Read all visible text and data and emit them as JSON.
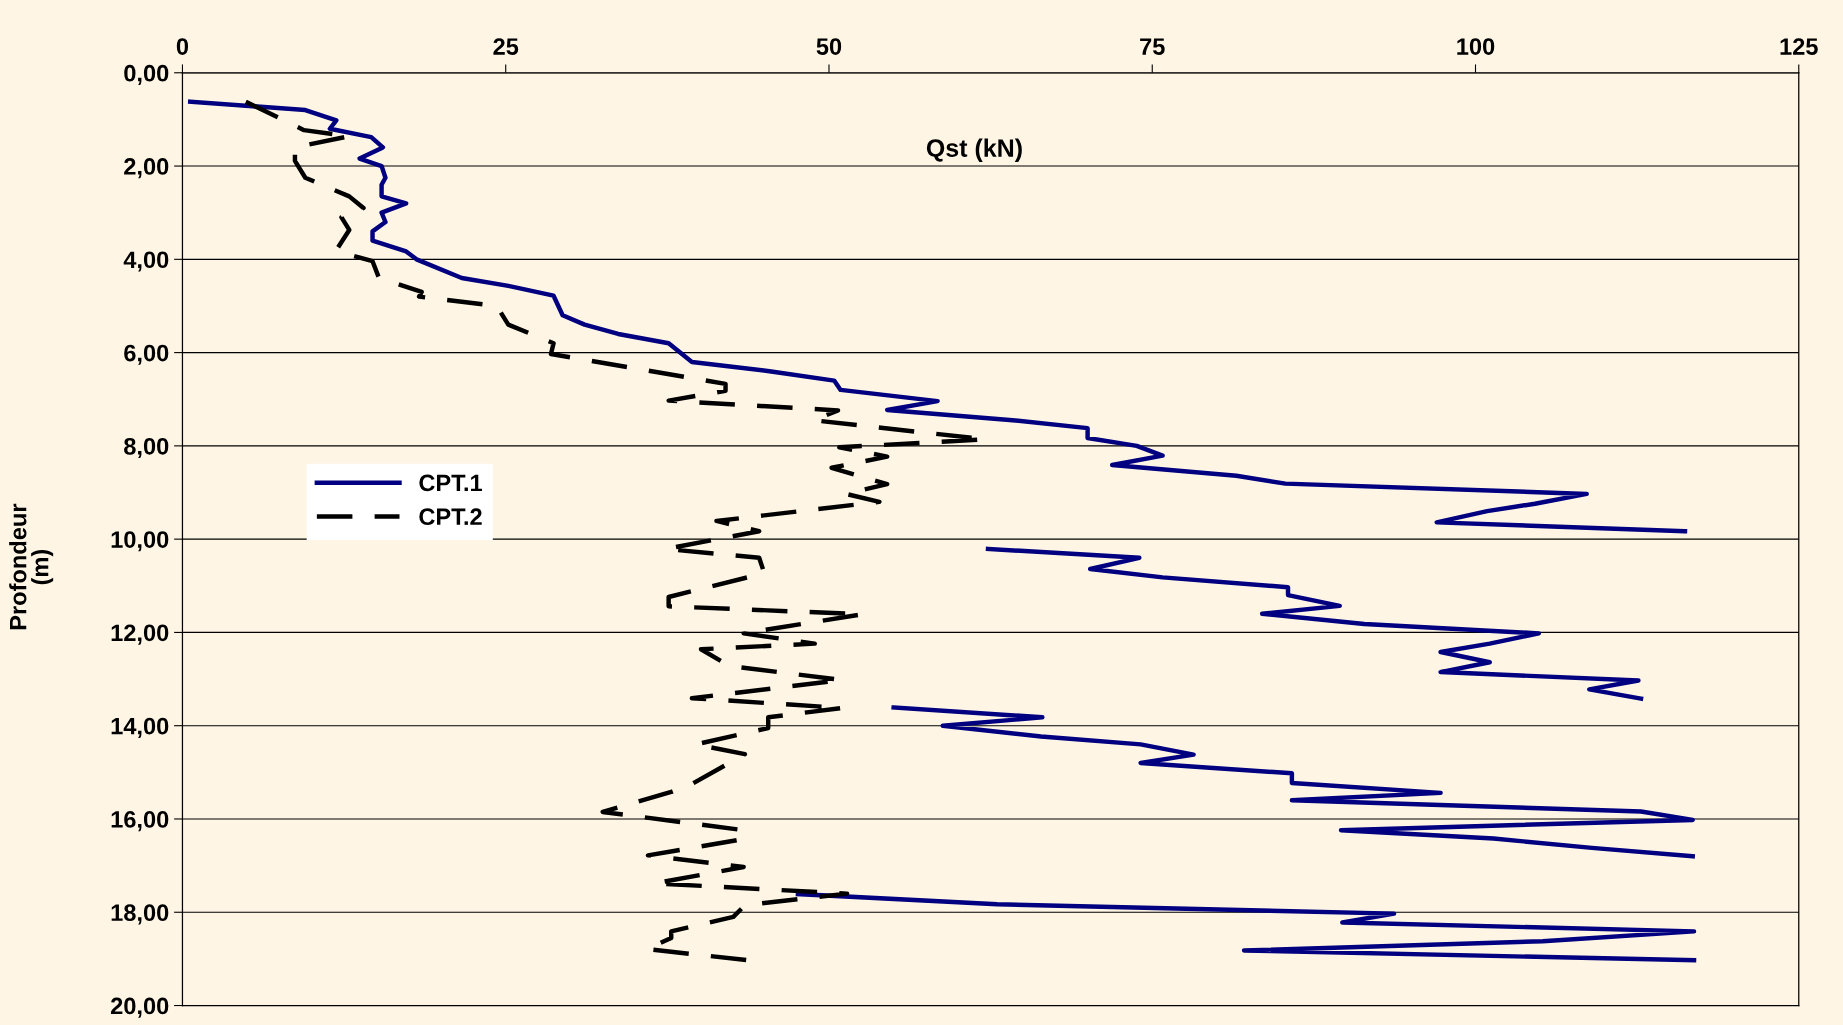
{
  "chart_data": {
    "type": "line",
    "xlabel": "Qst (kN)",
    "ylabel": "Profondeur\n(m)",
    "xlim": [
      0,
      125
    ],
    "xticks": [
      0,
      25,
      50,
      75,
      100,
      125
    ],
    "ylim": [
      20,
      0
    ],
    "yticks": [
      {
        "value": 0,
        "label": "0,00"
      },
      {
        "value": 2,
        "label": "2,00"
      },
      {
        "value": 4,
        "label": "4,00"
      },
      {
        "value": 6,
        "label": "6,00"
      },
      {
        "value": 8,
        "label": "8,00"
      },
      {
        "value": 10,
        "label": "10,00"
      },
      {
        "value": 12,
        "label": "12,00"
      },
      {
        "value": 14,
        "label": "14,00"
      },
      {
        "value": 16,
        "label": "16,00"
      },
      {
        "value": 18,
        "label": "18,00"
      },
      {
        "value": 20,
        "label": "20,00"
      }
    ],
    "grid": "y",
    "legend": "left",
    "marker": "none",
    "series": [
      {
        "name": "CPT.1",
        "color": "#000080",
        "line_style": "solid",
        "x": [
          0.6,
          9.5,
          11.9,
          11.4,
          14.6,
          15.5,
          13.7,
          15.4,
          15.7,
          15.4,
          15.4,
          17.3,
          15.4,
          15.7,
          14.7,
          14.7,
          17.3,
          18.1,
          21.6,
          25.2,
          28.7,
          29.4,
          31.1,
          33.7,
          37.6,
          39.4,
          45.4,
          50.4,
          50.9,
          58.4,
          54.5,
          64.2,
          70.0,
          70.0,
          73.8,
          75.8,
          71.9,
          81.5,
          85.3,
          108.6,
          104.6,
          100.9,
          97.0,
          116.2,
          null,
          62.3,
          74.0,
          70.2,
          75.8,
          85.5,
          85.5,
          89.5,
          83.5,
          91.4,
          104.9,
          101.1,
          97.3,
          101.1,
          97.3,
          112.6,
          108.8,
          112.8,
          null,
          55.0,
          66.5,
          58.8,
          66.4,
          74.1,
          78.2,
          74.1,
          85.8,
          85.8,
          97.3,
          85.8,
          112.8,
          116.8,
          89.6,
          101.4,
          109.0,
          116.8,
          null,
          47.6,
          63.0,
          93.7,
          89.7,
          116.9,
          105.2,
          82.1,
          116.9
        ],
        "values": [
          0.62,
          0.8,
          1.02,
          1.2,
          1.38,
          1.6,
          1.84,
          2.0,
          2.25,
          2.4,
          2.65,
          2.8,
          3.0,
          3.2,
          3.4,
          3.6,
          3.83,
          4.0,
          4.4,
          4.57,
          4.78,
          5.2,
          5.4,
          5.6,
          5.8,
          6.2,
          6.4,
          6.6,
          6.8,
          7.04,
          7.23,
          7.45,
          7.62,
          7.83,
          8.0,
          8.21,
          8.41,
          8.64,
          8.81,
          9.03,
          9.24,
          9.4,
          9.64,
          9.83,
          null,
          10.21,
          10.4,
          10.64,
          10.82,
          11.03,
          11.2,
          11.43,
          11.6,
          11.82,
          12.02,
          12.24,
          12.42,
          12.64,
          12.85,
          13.03,
          13.22,
          13.42,
          null,
          13.61,
          13.82,
          14.0,
          14.23,
          14.4,
          14.62,
          14.8,
          15.02,
          15.23,
          15.44,
          15.6,
          15.84,
          16.02,
          16.24,
          16.42,
          16.62,
          16.8,
          null,
          17.61,
          17.83,
          18.03,
          18.22,
          18.41,
          18.62,
          18.82,
          19.03
        ]
      },
      {
        "name": "CPT.2",
        "color": "#000000",
        "line_style": "dashed",
        "x": [
          4.9,
          9.4,
          12.9,
          8.7,
          8.7,
          9.5,
          12.9,
          14.0,
          12.3,
          12.9,
          11.9,
          12.9,
          14.7,
          15.2,
          18.5,
          18.3,
          24.3,
          25.2,
          28.7,
          28.5,
          42.0,
          42.0,
          37.6,
          50.7,
          48.8,
          62.1,
          50.8,
          54.5,
          50.2,
          54.5,
          51.3,
          53.9,
          41.3,
          44.6,
          37.4,
          44.6,
          45.0,
          37.6,
          37.6,
          52.6,
          43.4,
          48.9,
          40.1,
          42.3,
          51.0,
          39.4,
          51.0,
          45.3,
          45.3,
          39.7,
          43.5,
          39.4,
          37.8,
          32.5,
          43.4,
          43.4,
          36.0,
          43.4,
          36.5,
          51.4,
          43.5,
          42.6,
          37.8,
          37.8,
          35.9,
          43.8
        ],
        "values": [
          0.62,
          1.23,
          1.36,
          1.6,
          1.89,
          2.25,
          2.65,
          2.9,
          3.1,
          3.37,
          3.8,
          3.9,
          4.04,
          4.4,
          4.7,
          4.8,
          5.0,
          5.4,
          5.8,
          6.03,
          6.67,
          6.82,
          7.03,
          7.24,
          7.45,
          7.86,
          8.03,
          8.23,
          8.47,
          8.82,
          9.03,
          9.2,
          9.61,
          9.83,
          10.21,
          10.4,
          10.73,
          11.24,
          11.44,
          11.61,
          12.02,
          12.24,
          12.36,
          12.72,
          13.02,
          13.41,
          13.62,
          13.82,
          14.05,
          14.4,
          14.61,
          15.25,
          15.42,
          15.85,
          16.24,
          16.43,
          16.78,
          17.03,
          17.38,
          17.6,
          17.85,
          18.1,
          18.41,
          18.55,
          18.79,
          19.03
        ]
      }
    ]
  }
}
